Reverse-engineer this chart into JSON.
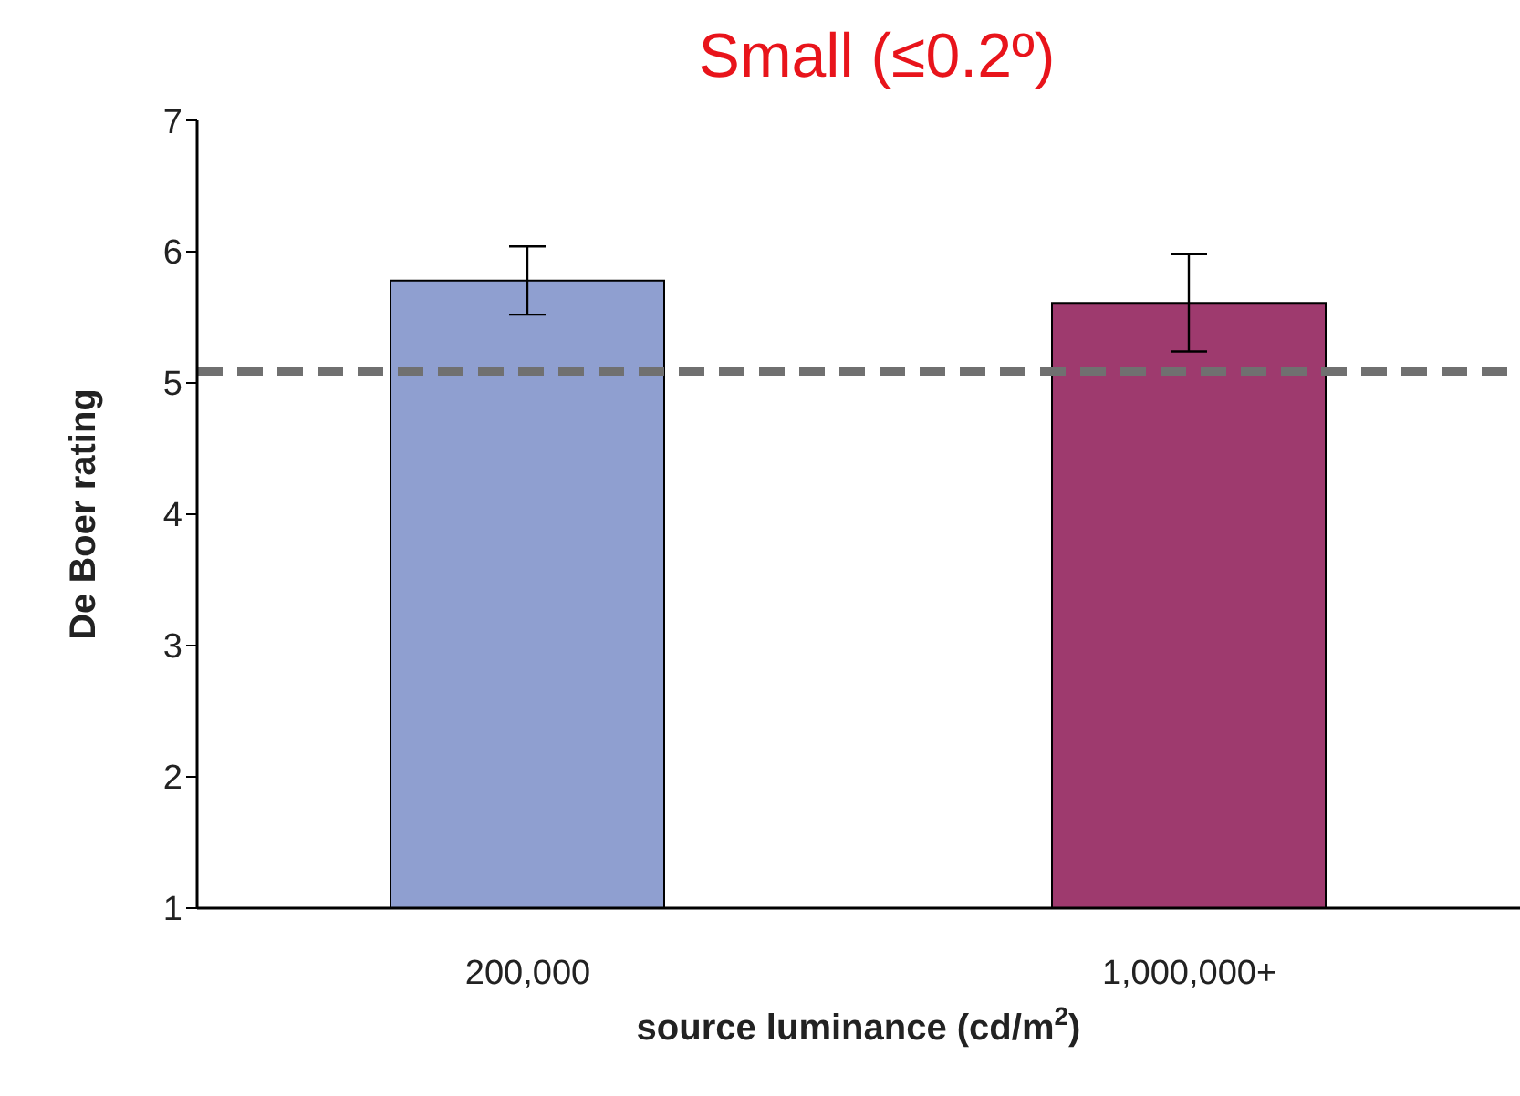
{
  "chart_data": {
    "type": "bar",
    "title": "Small (≤0.2º)",
    "xlabel": "source luminance (cd/m$^{2}$)",
    "ylabel": "De Boer rating",
    "categories": [
      "200,000",
      "1,000,000+"
    ],
    "values": [
      5.78,
      5.61
    ],
    "errors": [
      0.26,
      0.37
    ],
    "colors": [
      "#8f9fd0",
      "#9e3a6e"
    ],
    "ylim": [
      1,
      7
    ],
    "yticks": [
      1,
      2,
      3,
      4,
      5,
      6,
      7
    ],
    "grid": false,
    "legend": false,
    "ref_lines": [
      {
        "axis": "y",
        "value": 5.09,
        "label": null,
        "color": "#707070",
        "line_style": "dashed"
      }
    ]
  }
}
